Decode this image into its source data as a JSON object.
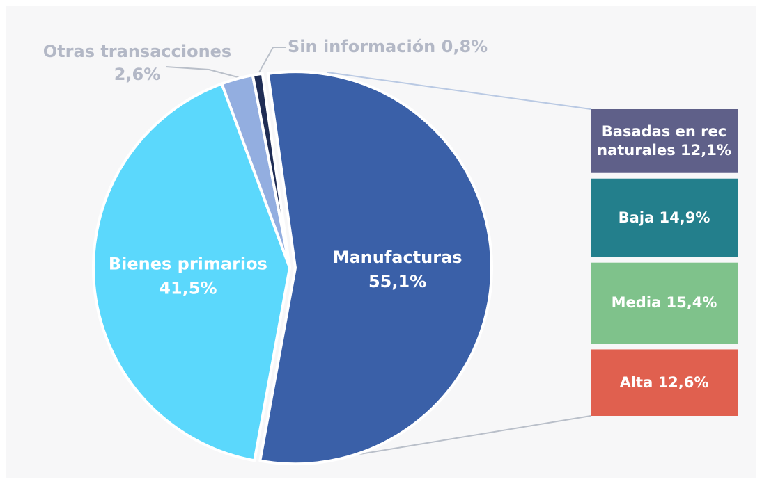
{
  "chart_data": [
    {
      "type": "pie",
      "categories": [
        "Manufacturas",
        "Bienes primarios",
        "Otras transacciones",
        "Sin información"
      ],
      "values": [
        55.1,
        41.5,
        2.6,
        0.8
      ],
      "value_labels": [
        "55,1%",
        "41,5%",
        "2,6%",
        "0,8%"
      ],
      "colors": [
        "#3a60a8",
        "#5bd8fc",
        "#93aee0",
        "#1f2d55"
      ]
    },
    {
      "type": "bar",
      "categories": [
        "Basadas en rec naturales",
        "Baja",
        "Media",
        "Alta"
      ],
      "values": [
        12.1,
        14.9,
        15.4,
        12.6
      ],
      "value_labels": [
        "12,1%",
        "14,9%",
        "15,4%",
        "12,6%"
      ],
      "colors": [
        "#5f6089",
        "#237f8c",
        "#7fc28b",
        "#e0604f"
      ]
    }
  ]
}
